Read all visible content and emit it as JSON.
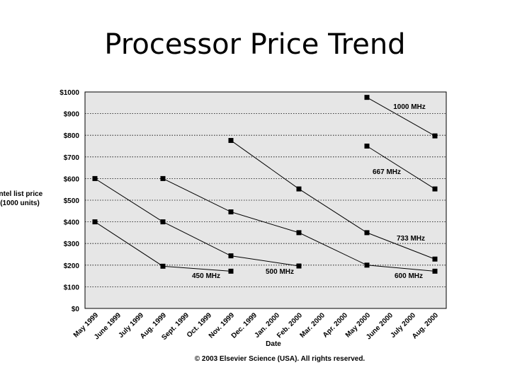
{
  "title": "Processor Price Trend",
  "copyright": "© 2003 Elsevier Science (USA). All rights reserved.",
  "chart_data": {
    "type": "line",
    "xlabel": "Date",
    "ylabel": [
      "Intel list price",
      "(1000 units)"
    ],
    "categories": [
      "May 1999",
      "June 1999",
      "July 1999",
      "Aug. 1999",
      "Sept. 1999",
      "Oct. 1999",
      "Nov. 1999",
      "Dec. 1999",
      "Jan. 2000",
      "Feb. 2000",
      "Mar. 2000",
      "Apr. 2000",
      "May 2000",
      "June 2000",
      "July 2000",
      "Aug. 2000"
    ],
    "y_ticks": [
      "$0",
      "$100",
      "$200",
      "$300",
      "$400",
      "$500",
      "$600",
      "$700",
      "$800",
      "$900",
      "$1000"
    ],
    "ylim": [
      0,
      1000
    ],
    "grid": "horizontal dotted",
    "marker": "square",
    "series": [
      {
        "name": "450 MHz",
        "points": [
          [
            "May 1999",
            400
          ],
          [
            "Aug. 1999",
            195
          ],
          [
            "Nov. 1999",
            172
          ]
        ]
      },
      {
        "name": "500 MHz",
        "points": [
          [
            "May 1999",
            600
          ],
          [
            "Aug. 1999",
            400
          ],
          [
            "Nov. 1999",
            243
          ],
          [
            "Feb. 2000",
            196
          ]
        ]
      },
      {
        "name": "600 MHz",
        "points": [
          [
            "Aug. 1999",
            600
          ],
          [
            "Nov. 1999",
            446
          ],
          [
            "Feb. 2000",
            350
          ],
          [
            "May 2000",
            200
          ],
          [
            "Aug. 2000",
            172
          ]
        ]
      },
      {
        "name": "733 MHz",
        "points": [
          [
            "Nov. 1999",
            776
          ],
          [
            "Feb. 2000",
            552
          ],
          [
            "May 2000",
            350
          ],
          [
            "Aug. 2000",
            228
          ]
        ]
      },
      {
        "name": "667 MHz",
        "points": [
          [
            "May 2000",
            750
          ],
          [
            "Aug. 2000",
            552
          ]
        ]
      },
      {
        "name": "1000 MHz",
        "points": [
          [
            "May 2000",
            975
          ],
          [
            "Aug. 2000",
            797
          ]
        ]
      }
    ]
  }
}
